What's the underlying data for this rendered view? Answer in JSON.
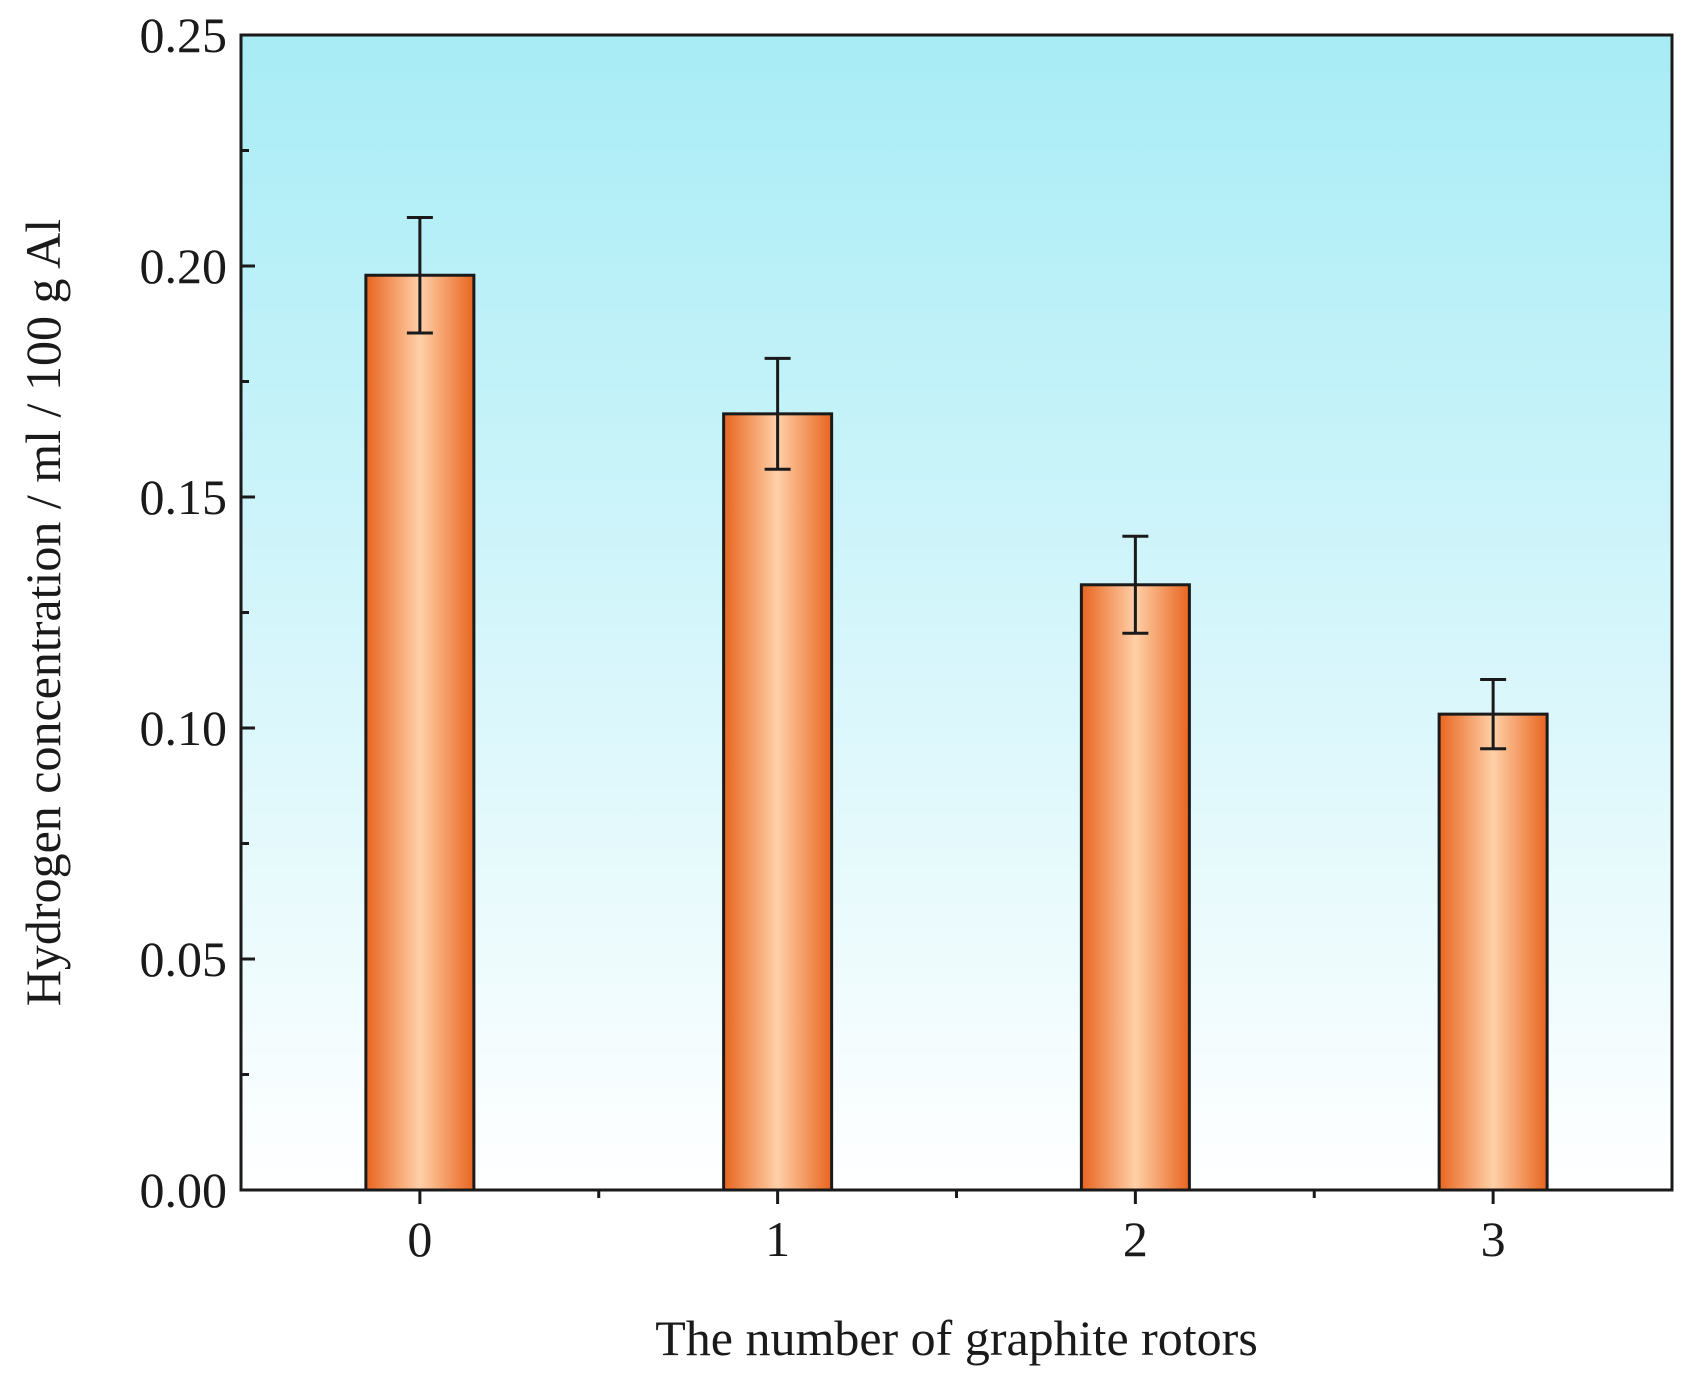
{
  "chart_data": {
    "type": "bar",
    "categories": [
      "0",
      "1",
      "2",
      "3"
    ],
    "values": [
      0.198,
      0.168,
      0.131,
      0.103
    ],
    "error": [
      0.0125,
      0.012,
      0.0105,
      0.0075
    ],
    "xlabel": "The number of graphite rotors",
    "ylabel": "Hydrogen concentration / ml / 100 g Al",
    "ylim": [
      0,
      0.25
    ],
    "yticks": [
      "0.00",
      "0.05",
      "0.10",
      "0.15",
      "0.20",
      "0.25"
    ],
    "grid": false,
    "colors": {
      "bar_edge": "#e8651f",
      "bar_center": "#ffd0a8",
      "bar_outline": "#1a1a1a",
      "background_top": "#a8ecf6",
      "background_bottom": "#ffffff"
    }
  }
}
